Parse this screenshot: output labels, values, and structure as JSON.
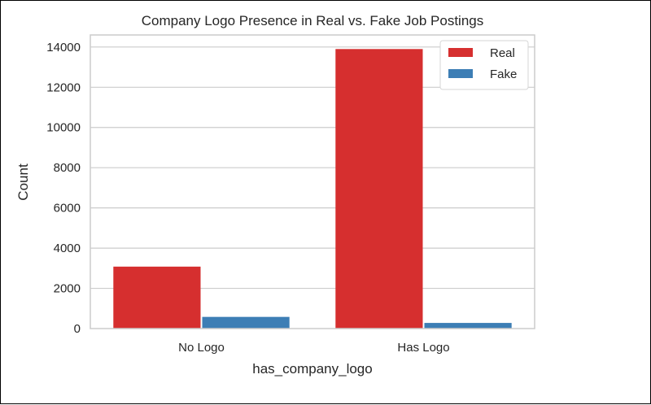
{
  "chart_data": {
    "type": "bar",
    "title": "Company Logo Presence in Real vs. Fake Job Postings",
    "xlabel": "has_company_logo",
    "ylabel": "Count",
    "categories": [
      "No Logo",
      "Has Logo"
    ],
    "series": [
      {
        "name": "Real",
        "values": [
          3080,
          13900
        ],
        "color": "#d62f2f"
      },
      {
        "name": "Fake",
        "values": [
          580,
          280
        ],
        "color": "#3d7eb5"
      }
    ],
    "ylim": [
      0,
      14600
    ],
    "yticks": [
      0,
      2000,
      4000,
      6000,
      8000,
      10000,
      12000,
      14000
    ],
    "grid": true,
    "legend_position": "top-right"
  }
}
